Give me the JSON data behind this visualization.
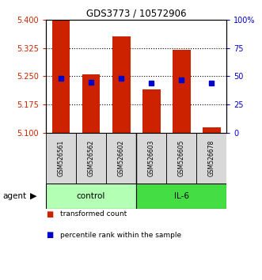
{
  "title": "GDS3773 / 10572906",
  "samples": [
    "GSM526561",
    "GSM526562",
    "GSM526602",
    "GSM526603",
    "GSM526605",
    "GSM526678"
  ],
  "transformed_counts": [
    5.4,
    5.255,
    5.355,
    5.215,
    5.32,
    5.115
  ],
  "percentile_ranks": [
    48,
    45,
    48,
    44,
    47,
    44
  ],
  "bar_color": "#cc2200",
  "dot_color": "#0000cc",
  "ylim_left": [
    5.1,
    5.4
  ],
  "yticks_left": [
    5.1,
    5.175,
    5.25,
    5.325,
    5.4
  ],
  "ylim_right": [
    0,
    100
  ],
  "yticks_right": [
    0,
    25,
    50,
    75,
    100
  ],
  "ytick_labels_right": [
    "0",
    "25",
    "50",
    "75",
    "100%"
  ],
  "control_color": "#b3ffb3",
  "il6_color": "#44dd44",
  "left_axis_color": "#cc2200",
  "right_axis_color": "#0000cc",
  "legend_entries": [
    "transformed count",
    "percentile rank within the sample"
  ],
  "hline_values": [
    5.175,
    5.25,
    5.325
  ],
  "bar_width": 0.6
}
